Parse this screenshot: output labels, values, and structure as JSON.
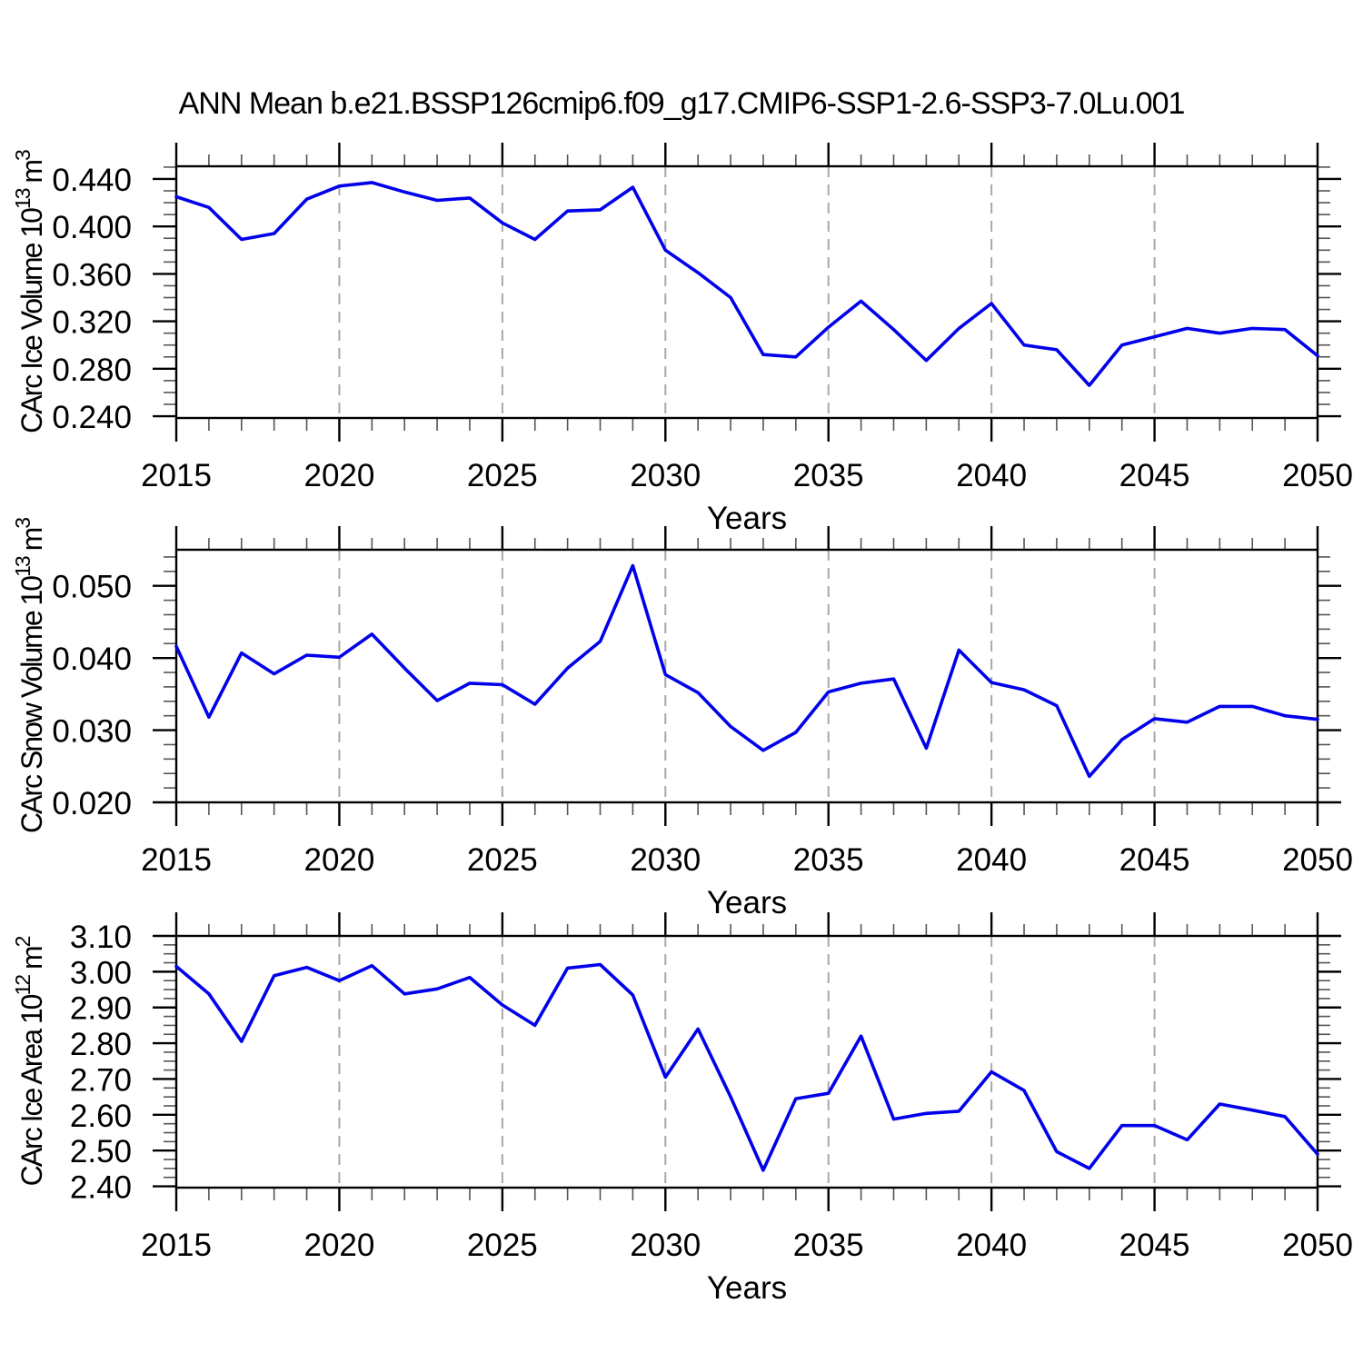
{
  "title": "ANN Mean b.e21.BSSP126cmip6.f09_g17.CMIP6-SSP1-2.6-SSP3-7.0Lu.001",
  "line_color": "#0000EB",
  "gridline_color": "#A8A8A8",
  "axis_color": "#000000",
  "minor_tick_color": "#555555",
  "chart_data": [
    {
      "type": "line",
      "ylabel": "CArc Ice Volume 10^13 m^3",
      "ylabel_parts": [
        {
          "text": "CArc Ice Volume 10"
        },
        {
          "text": "13",
          "sup": true
        },
        {
          "text": " m"
        },
        {
          "text": "3",
          "sup": true
        }
      ],
      "xlabel": "Years",
      "x": [
        2015,
        2016,
        2017,
        2018,
        2019,
        2020,
        2021,
        2022,
        2023,
        2024,
        2025,
        2026,
        2027,
        2028,
        2029,
        2030,
        2031,
        2032,
        2033,
        2034,
        2035,
        2036,
        2037,
        2038,
        2039,
        2040,
        2041,
        2042,
        2043,
        2044,
        2045,
        2046,
        2047,
        2048,
        2049,
        2050
      ],
      "values": [
        0.425,
        0.416,
        0.389,
        0.394,
        0.423,
        0.434,
        0.437,
        0.429,
        0.422,
        0.424,
        0.403,
        0.389,
        0.413,
        0.414,
        0.433,
        0.38,
        0.361,
        0.34,
        0.292,
        0.29,
        0.315,
        0.337,
        0.313,
        0.287,
        0.314,
        0.335,
        0.3,
        0.296,
        0.266,
        0.3,
        0.307,
        0.314,
        0.31,
        0.314,
        0.313,
        0.291
      ],
      "xlim": [
        2015,
        2050
      ],
      "ylim": [
        0.2385,
        0.4507
      ],
      "xticks_major": [
        2015,
        2020,
        2025,
        2030,
        2035,
        2040,
        2045,
        2050
      ],
      "xtick_labels": [
        "2015",
        "2020",
        "2025",
        "2030",
        "2035",
        "2040",
        "2045",
        "2050"
      ],
      "xticks_minor": [
        2016,
        2017,
        2018,
        2019,
        2021,
        2022,
        2023,
        2024,
        2026,
        2027,
        2028,
        2029,
        2031,
        2032,
        2033,
        2034,
        2036,
        2037,
        2038,
        2039,
        2041,
        2042,
        2043,
        2044,
        2046,
        2047,
        2048,
        2049
      ],
      "xgridlines": [
        2020,
        2025,
        2030,
        2035,
        2040,
        2045
      ],
      "yticks_major": [
        0.24,
        0.28,
        0.32,
        0.36,
        0.4,
        0.44
      ],
      "ytick_labels": [
        "0.240",
        "0.280",
        "0.320",
        "0.360",
        "0.400",
        "0.440"
      ],
      "yticks_minor": [
        0.25,
        0.26,
        0.27,
        0.29,
        0.3,
        0.31,
        0.33,
        0.34,
        0.35,
        0.37,
        0.38,
        0.39,
        0.41,
        0.42,
        0.43,
        0.45
      ],
      "grid": "vertical-dashed",
      "legend": "none"
    },
    {
      "type": "line",
      "ylabel": "CArc Snow Volume 10^13 m^3",
      "ylabel_parts": [
        {
          "text": "CArc Snow Volume 10"
        },
        {
          "text": "13",
          "sup": true
        },
        {
          "text": " m"
        },
        {
          "text": "3",
          "sup": true
        }
      ],
      "xlabel": "Years",
      "x": [
        2015,
        2016,
        2017,
        2018,
        2019,
        2020,
        2021,
        2022,
        2023,
        2024,
        2025,
        2026,
        2027,
        2028,
        2029,
        2030,
        2031,
        2032,
        2033,
        2034,
        2035,
        2036,
        2037,
        2038,
        2039,
        2040,
        2041,
        2042,
        2043,
        2044,
        2045,
        2046,
        2047,
        2048,
        2049,
        2050
      ],
      "values": [
        0.0416,
        0.0318,
        0.0407,
        0.0378,
        0.0404,
        0.0401,
        0.0433,
        0.0386,
        0.0341,
        0.0365,
        0.0363,
        0.0336,
        0.0386,
        0.0423,
        0.0528,
        0.0377,
        0.0352,
        0.0305,
        0.0272,
        0.0297,
        0.0353,
        0.0365,
        0.0371,
        0.0275,
        0.0411,
        0.0366,
        0.0356,
        0.0334,
        0.0236,
        0.0287,
        0.0316,
        0.0311,
        0.0333,
        0.0333,
        0.032,
        0.0315
      ],
      "xlim": [
        2015,
        2050
      ],
      "ylim": [
        0.02,
        0.055
      ],
      "xticks_major": [
        2015,
        2020,
        2025,
        2030,
        2035,
        2040,
        2045,
        2050
      ],
      "xtick_labels": [
        "2015",
        "2020",
        "2025",
        "2030",
        "2035",
        "2040",
        "2045",
        "2050"
      ],
      "xticks_minor": [
        2016,
        2017,
        2018,
        2019,
        2021,
        2022,
        2023,
        2024,
        2026,
        2027,
        2028,
        2029,
        2031,
        2032,
        2033,
        2034,
        2036,
        2037,
        2038,
        2039,
        2041,
        2042,
        2043,
        2044,
        2046,
        2047,
        2048,
        2049
      ],
      "xgridlines": [
        2020,
        2025,
        2030,
        2035,
        2040,
        2045
      ],
      "yticks_major": [
        0.02,
        0.03,
        0.04,
        0.05
      ],
      "ytick_labels": [
        "0.020",
        "0.030",
        "0.040",
        "0.050"
      ],
      "yticks_minor": [
        0.022,
        0.024,
        0.026,
        0.028,
        0.032,
        0.034,
        0.036,
        0.038,
        0.042,
        0.044,
        0.046,
        0.048,
        0.052,
        0.054
      ],
      "grid": "vertical-dashed",
      "legend": "none"
    },
    {
      "type": "line",
      "ylabel": "CArc Ice Area 10^12 m^2",
      "ylabel_parts": [
        {
          "text": "CArc Ice Area 10"
        },
        {
          "text": "12",
          "sup": true
        },
        {
          "text": " m"
        },
        {
          "text": "2",
          "sup": true
        }
      ],
      "xlabel": "Years",
      "x": [
        2015,
        2016,
        2017,
        2018,
        2019,
        2020,
        2021,
        2022,
        2023,
        2024,
        2025,
        2026,
        2027,
        2028,
        2029,
        2030,
        2031,
        2032,
        2033,
        2034,
        2035,
        2036,
        2037,
        2038,
        2039,
        2040,
        2041,
        2042,
        2043,
        2044,
        2045,
        2046,
        2047,
        2048,
        2049,
        2050
      ],
      "values": [
        3.015,
        2.938,
        2.805,
        2.989,
        3.012,
        2.975,
        3.017,
        2.938,
        2.952,
        2.984,
        2.907,
        2.85,
        3.01,
        3.02,
        2.935,
        2.705,
        2.84,
        2.65,
        2.445,
        2.645,
        2.66,
        2.82,
        2.588,
        2.604,
        2.61,
        2.72,
        2.668,
        2.497,
        2.45,
        2.57,
        2.57,
        2.53,
        2.63,
        2.613,
        2.595,
        2.49
      ],
      "xlim": [
        2015,
        2050
      ],
      "ylim": [
        2.3964,
        3.1
      ],
      "xticks_major": [
        2015,
        2020,
        2025,
        2030,
        2035,
        2040,
        2045,
        2050
      ],
      "xtick_labels": [
        "2015",
        "2020",
        "2025",
        "2030",
        "2035",
        "2040",
        "2045",
        "2050"
      ],
      "xticks_minor": [
        2016,
        2017,
        2018,
        2019,
        2021,
        2022,
        2023,
        2024,
        2026,
        2027,
        2028,
        2029,
        2031,
        2032,
        2033,
        2034,
        2036,
        2037,
        2038,
        2039,
        2041,
        2042,
        2043,
        2044,
        2046,
        2047,
        2048,
        2049
      ],
      "xgridlines": [
        2020,
        2025,
        2030,
        2035,
        2040,
        2045
      ],
      "yticks_major": [
        2.4,
        2.5,
        2.6,
        2.7,
        2.8,
        2.9,
        3.0,
        3.1
      ],
      "ytick_labels": [
        "2.40",
        "2.50",
        "2.60",
        "2.70",
        "2.80",
        "2.90",
        "3.00",
        "3.10"
      ],
      "yticks_minor": [
        2.425,
        2.45,
        2.475,
        2.525,
        2.55,
        2.575,
        2.625,
        2.65,
        2.675,
        2.725,
        2.75,
        2.775,
        2.825,
        2.85,
        2.875,
        2.925,
        2.95,
        2.975,
        3.025,
        3.05,
        3.075
      ],
      "grid": "vertical-dashed",
      "legend": "none"
    }
  ]
}
